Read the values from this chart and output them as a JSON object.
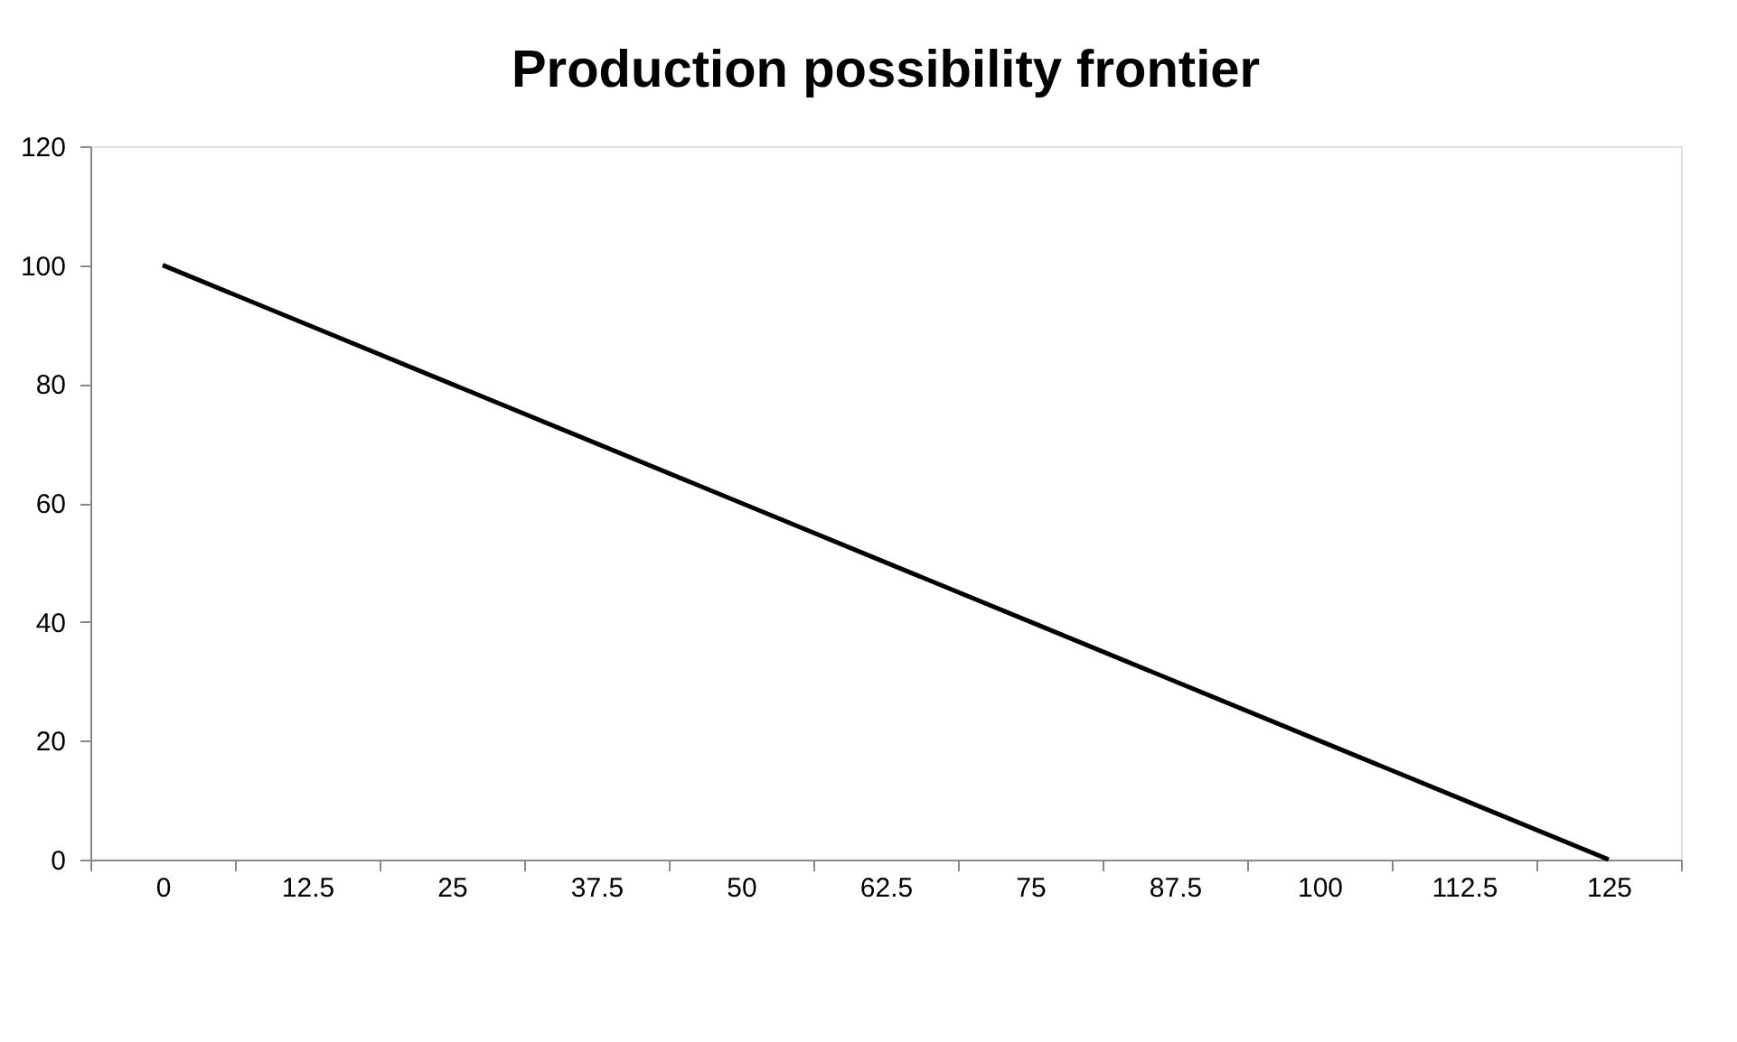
{
  "chart_data": {
    "type": "line",
    "title": "Production possibility frontier",
    "categories": [
      "0",
      "12.5",
      "25",
      "37.5",
      "50",
      "62.5",
      "75",
      "87.5",
      "100",
      "112.5",
      "125"
    ],
    "series": [
      {
        "color": "#000000",
        "values": [
          100,
          90,
          80,
          70,
          60,
          50,
          40,
          30,
          20,
          10,
          0
        ]
      }
    ],
    "ylim": [
      0,
      120
    ],
    "yticks": [
      0,
      20,
      40,
      60,
      80,
      100,
      120
    ],
    "grid": false,
    "legend": false,
    "marker": "none",
    "line_style": "solid"
  }
}
